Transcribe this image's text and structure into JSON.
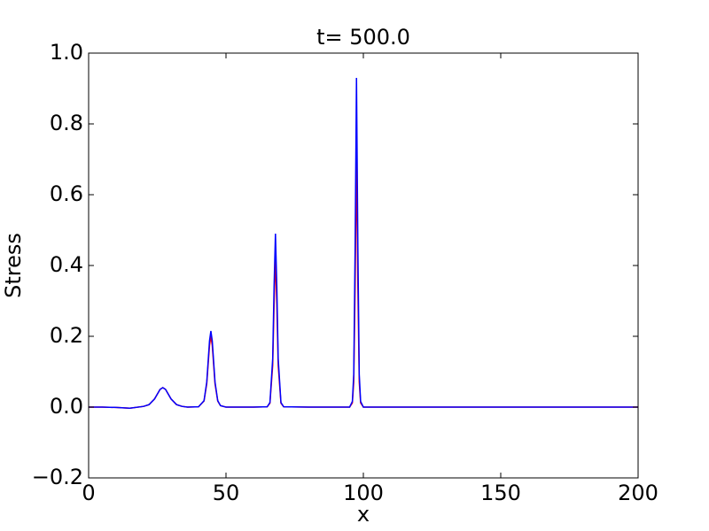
{
  "chart_data": {
    "type": "line",
    "title": "t= 500.0",
    "x_label": "x",
    "y_label": "Stress",
    "x": [
      0,
      5,
      10,
      15,
      20,
      22,
      24,
      26,
      27,
      28,
      30,
      32,
      34,
      36,
      40,
      42,
      43,
      44,
      44.5,
      45,
      46,
      47,
      48,
      50,
      60,
      65,
      66,
      67,
      67.5,
      68,
      68.5,
      69,
      70,
      71,
      80,
      95,
      96,
      96.5,
      97,
      97.5,
      98,
      98.5,
      99,
      100,
      150,
      200
    ],
    "series": [
      {
        "color": "#ff0000",
        "values": [
          0.0,
          0.0,
          -0.001,
          -0.003,
          0.002,
          0.007,
          0.023,
          0.05,
          0.055,
          0.05,
          0.023,
          0.007,
          0.002,
          0.0,
          0.001,
          0.017,
          0.066,
          0.174,
          0.2,
          0.174,
          0.066,
          0.017,
          0.004,
          0.0,
          0.0,
          0.001,
          0.011,
          0.118,
          0.29,
          0.42,
          0.29,
          0.118,
          0.011,
          0.001,
          0.0,
          0.0,
          0.012,
          0.071,
          0.34,
          0.71,
          0.34,
          0.071,
          0.012,
          0.0,
          0.0,
          0.0
        ]
      },
      {
        "color": "#0000ff",
        "values": [
          0.0,
          0.0,
          -0.001,
          -0.003,
          0.002,
          0.007,
          0.023,
          0.05,
          0.055,
          0.05,
          0.023,
          0.007,
          0.002,
          0.0,
          0.001,
          0.018,
          0.071,
          0.187,
          0.215,
          0.187,
          0.071,
          0.018,
          0.004,
          0.0,
          0.0,
          0.001,
          0.013,
          0.137,
          0.34,
          0.49,
          0.34,
          0.137,
          0.013,
          0.001,
          0.0,
          0.0,
          0.016,
          0.093,
          0.45,
          0.93,
          0.45,
          0.093,
          0.016,
          0.0,
          0.0,
          0.0
        ]
      }
    ],
    "xlim": [
      0,
      200
    ],
    "xticks": [
      0,
      50,
      100,
      150,
      200
    ],
    "ylim": [
      -0.2,
      1.0
    ],
    "yticks": [
      {
        "value": -0.2,
        "label": "−0.2"
      },
      {
        "value": 0,
        "label": "0.0"
      },
      {
        "value": 0.2,
        "label": "0.2"
      },
      {
        "value": 0.4,
        "label": "0.4"
      },
      {
        "value": 0.6,
        "label": "0.6"
      },
      {
        "value": 0.8,
        "label": "0.8"
      },
      {
        "value": 1.0,
        "label": "1.0"
      }
    ],
    "grid": false
  }
}
